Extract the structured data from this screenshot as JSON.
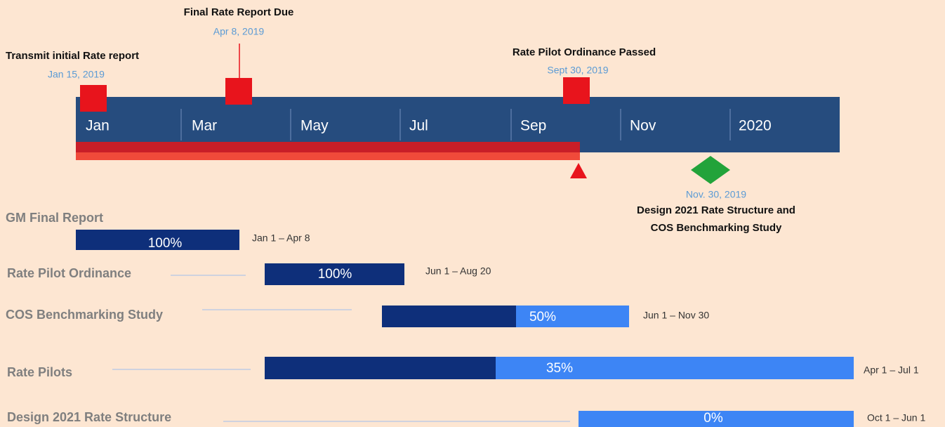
{
  "milestones": [
    {
      "title": "Transmit initial Rate report",
      "date": "Jan 15,  2019"
    },
    {
      "title": "Final Rate Report Due",
      "date": "Apr 8, 2019"
    },
    {
      "title": "Rate Pilot Ordinance Passed",
      "date": "Sept 30, 2019"
    },
    {
      "title": "Design 2021 Rate Structure and",
      "title_line2": "COS Benchmarking Study",
      "date": "Nov. 30, 2019"
    }
  ],
  "timeline": {
    "labels": [
      "Jan",
      "Mar",
      "May",
      "Jul",
      "Sep",
      "Nov",
      "2020"
    ]
  },
  "tasks": [
    {
      "name": "GM Final Report",
      "progress": "100%",
      "range": "Jan 1 – Apr 8"
    },
    {
      "name": "Rate Pilot Ordinance",
      "progress": "100%",
      "range": "Jun 1 – Aug 20"
    },
    {
      "name": "COS Benchmarking Study",
      "progress": "50%",
      "range": "Jun 1 – Nov 30"
    },
    {
      "name": "Rate Pilots",
      "progress": "35%",
      "range": "Apr 1 – Jul 1"
    },
    {
      "name": "Design 2021 Rate Structure",
      "progress": "0%",
      "range": "Oct 1 – Jun 1"
    }
  ]
}
